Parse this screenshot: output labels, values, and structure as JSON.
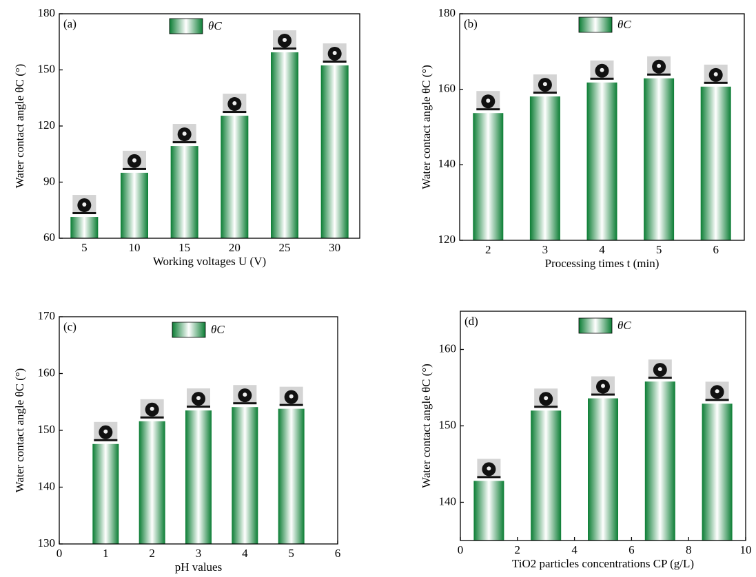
{
  "chart_data": [
    {
      "type": "bar",
      "label": "(a)",
      "xlabel": "Working voltages U (V)",
      "ylabel": "Water contact angle θC (°)",
      "categories": [
        "5",
        "10",
        "15",
        "20",
        "25",
        "30"
      ],
      "series": [
        {
          "name": "θC",
          "color": "#0b7d34",
          "values": [
            71.4,
            95,
            109.3,
            125.5,
            159.4,
            152.4
          ]
        }
      ],
      "ylim": [
        60,
        180
      ],
      "yticks": [
        60,
        90,
        120,
        150,
        180
      ]
    },
    {
      "type": "bar",
      "label": "(b)",
      "xlabel": "Processing times t (min)",
      "ylabel": "Water contact angle θC (°)",
      "categories": [
        "2",
        "3",
        "4",
        "5",
        "6"
      ],
      "series": [
        {
          "name": "θC",
          "color": "#0b7d34",
          "values": [
            153.7,
            158.1,
            161.8,
            162.9,
            160.7
          ]
        }
      ],
      "ylim": [
        120,
        180
      ],
      "yticks": [
        120,
        140,
        160,
        180
      ]
    },
    {
      "type": "bar",
      "label": "(c)",
      "xlabel": "pH values",
      "ylabel": "Water contact angle θC (°)",
      "x": [
        1,
        2,
        3,
        4,
        5
      ],
      "series": [
        {
          "name": "θC",
          "color": "#0b7d34",
          "values": [
            147.6,
            151.6,
            153.5,
            154.1,
            153.8
          ]
        }
      ],
      "xlim": [
        0,
        6
      ],
      "xticks": [
        0,
        1,
        2,
        3,
        4,
        5,
        6
      ],
      "ylim": [
        130,
        170
      ],
      "yticks": [
        130,
        140,
        150,
        160,
        170
      ]
    },
    {
      "type": "bar",
      "label": "(d)",
      "xlabel": "TiO2 particles concentrations CP (g/L)",
      "ylabel": "Water contact angle θC (°)",
      "x": [
        1,
        3,
        5,
        7,
        9
      ],
      "series": [
        {
          "name": "θC",
          "color": "#0b7d34",
          "values": [
            142.8,
            152.0,
            153.6,
            155.8,
            152.9
          ]
        }
      ],
      "xlim": [
        0,
        10
      ],
      "xticks": [
        0,
        2,
        4,
        6,
        8,
        10
      ],
      "ylim": [
        135,
        165
      ],
      "yticks": [
        140,
        150,
        160
      ]
    }
  ]
}
